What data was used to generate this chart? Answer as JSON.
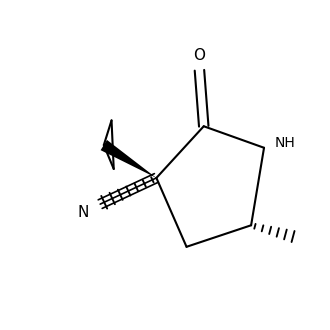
{
  "background_color": "#ffffff",
  "figure_size": [
    3.3,
    3.3
  ],
  "dpi": 100,
  "line_color": "#000000",
  "line_width": 1.5,
  "font_size_labels": 11,
  "font_size_nh": 10,
  "xlim": [
    -1.8,
    2.0
  ],
  "ylim": [
    -1.5,
    1.8
  ]
}
